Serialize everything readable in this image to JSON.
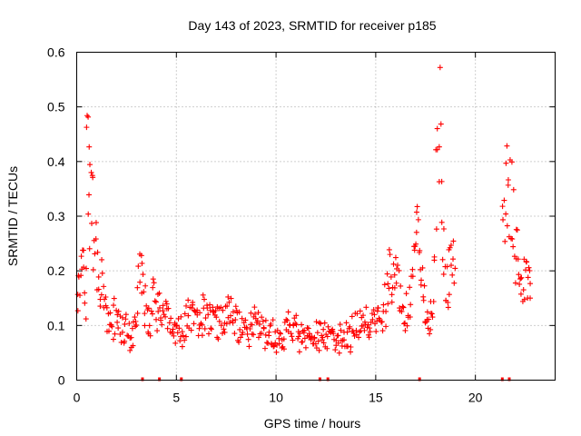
{
  "chart_data": {
    "type": "scatter",
    "title": "Day 143 of 2023, SRMTID for receiver p185",
    "xlabel": "GPS time / hours",
    "ylabel": "SRMTID / TECUs",
    "xlim": [
      0,
      24
    ],
    "ylim": [
      0,
      0.6
    ],
    "xticks": [
      0,
      5,
      10,
      15,
      20
    ],
    "xtick_labels": [
      "0",
      "5",
      "10",
      "15",
      "20"
    ],
    "yticks": [
      0,
      0.1,
      0.2,
      0.3,
      0.4,
      0.5,
      0.6
    ],
    "ytick_labels": [
      "0",
      "0.1",
      "0.2",
      "0.3",
      "0.4",
      "0.5",
      "0.6"
    ],
    "grid": true,
    "marker": "+",
    "color": "#ff0000",
    "data_gaps_hours": [
      3.3,
      4.15,
      5.25,
      12.2,
      12.6,
      17.2,
      21.35,
      21.7
    ],
    "series": [
      {
        "name": "SRMTID",
        "profile": [
          [
            0.0,
            0.14
          ],
          [
            0.1,
            0.17
          ],
          [
            0.2,
            0.19
          ],
          [
            0.3,
            0.21
          ],
          [
            0.4,
            0.15
          ],
          [
            0.45,
            0.1
          ],
          [
            0.5,
            0.42
          ],
          [
            0.55,
            0.44
          ],
          [
            0.6,
            0.38
          ],
          [
            0.65,
            0.33
          ],
          [
            0.75,
            0.31
          ],
          [
            0.85,
            0.27
          ],
          [
            0.95,
            0.23
          ],
          [
            1.05,
            0.2
          ],
          [
            1.2,
            0.18
          ],
          [
            1.4,
            0.15
          ],
          [
            1.6,
            0.12
          ],
          [
            1.9,
            0.11
          ],
          [
            2.2,
            0.1
          ],
          [
            2.5,
            0.09
          ],
          [
            2.8,
            0.08
          ],
          [
            3.0,
            0.1
          ],
          [
            3.15,
            0.23
          ],
          [
            3.3,
            0.16
          ],
          [
            3.5,
            0.12
          ],
          [
            3.7,
            0.11
          ],
          [
            3.85,
            0.15
          ],
          [
            4.0,
            0.13
          ],
          [
            4.2,
            0.13
          ],
          [
            4.5,
            0.12
          ],
          [
            4.8,
            0.1
          ],
          [
            5.0,
            0.09
          ],
          [
            5.2,
            0.08
          ],
          [
            5.5,
            0.1
          ],
          [
            5.8,
            0.12
          ],
          [
            6.2,
            0.13
          ],
          [
            6.6,
            0.12
          ],
          [
            7.0,
            0.11
          ],
          [
            7.4,
            0.12
          ],
          [
            7.8,
            0.11
          ],
          [
            8.2,
            0.1
          ],
          [
            8.6,
            0.09
          ],
          [
            9.0,
            0.1
          ],
          [
            9.4,
            0.08
          ],
          [
            9.8,
            0.09
          ],
          [
            10.2,
            0.08
          ],
          [
            10.6,
            0.09
          ],
          [
            11.0,
            0.1
          ],
          [
            11.4,
            0.07
          ],
          [
            11.8,
            0.08
          ],
          [
            12.2,
            0.09
          ],
          [
            12.6,
            0.08
          ],
          [
            13.0,
            0.07
          ],
          [
            13.4,
            0.08
          ],
          [
            13.8,
            0.09
          ],
          [
            14.2,
            0.1
          ],
          [
            14.6,
            0.11
          ],
          [
            15.0,
            0.1
          ],
          [
            15.3,
            0.12
          ],
          [
            15.6,
            0.17
          ],
          [
            15.8,
            0.21
          ],
          [
            16.0,
            0.19
          ],
          [
            16.3,
            0.14
          ],
          [
            16.6,
            0.12
          ],
          [
            16.9,
            0.2
          ],
          [
            17.1,
            0.28
          ],
          [
            17.3,
            0.16
          ],
          [
            17.5,
            0.12
          ],
          [
            17.7,
            0.1
          ],
          [
            17.9,
            0.14
          ],
          [
            18.0,
            0.33
          ],
          [
            18.1,
            0.46
          ],
          [
            18.2,
            0.53
          ],
          [
            18.3,
            0.3
          ],
          [
            18.4,
            0.22
          ],
          [
            18.6,
            0.18
          ],
          [
            18.8,
            0.21
          ],
          [
            19.0,
            0.2
          ],
          [
            21.35,
            0.28
          ],
          [
            21.5,
            0.32
          ],
          [
            21.7,
            0.38
          ],
          [
            21.85,
            0.33
          ],
          [
            22.0,
            0.24
          ],
          [
            22.2,
            0.2
          ],
          [
            22.4,
            0.18
          ],
          [
            22.6,
            0.2
          ],
          [
            22.8,
            0.21
          ]
        ]
      }
    ]
  }
}
